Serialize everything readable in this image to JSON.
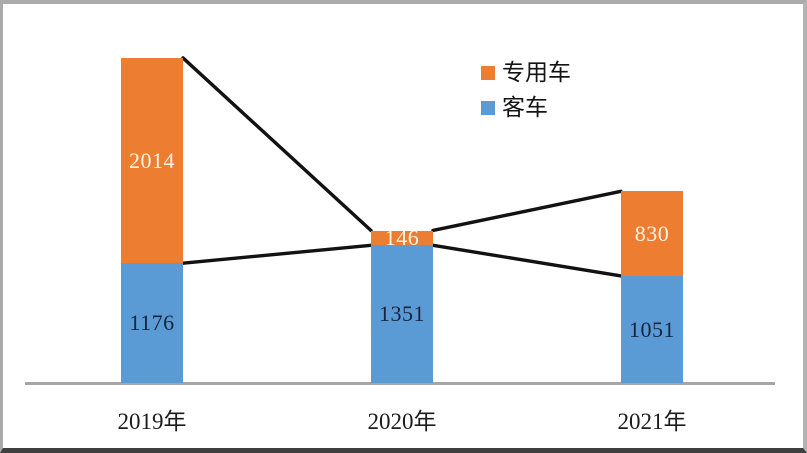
{
  "chart_data": {
    "type": "bar",
    "stacked": true,
    "title": "",
    "categories": [
      "2019年",
      "2020年",
      "2021年"
    ],
    "series": [
      {
        "name": "客车",
        "color": "#5b9bd5",
        "values": [
          1176,
          1351,
          1051
        ],
        "value_label_color": "#16243d"
      },
      {
        "name": "专用车",
        "color": "#ed7d31",
        "values": [
          2014,
          146,
          830
        ],
        "value_label_color": "#fdf4e3"
      }
    ],
    "legend": [
      {
        "label": "专用车",
        "color": "#ed7d31"
      },
      {
        "label": "客车",
        "color": "#5b9bd5"
      }
    ],
    "connectors": {
      "color": "#121212",
      "description": "Black lines connect the top of the total stack and the top of the 客车 segment between adjacent bars"
    },
    "axis": {
      "baseline_color": "#a6a6a6",
      "gridlines": false,
      "y_axis_visible": false,
      "xlabel": "",
      "ylabel": ""
    }
  }
}
